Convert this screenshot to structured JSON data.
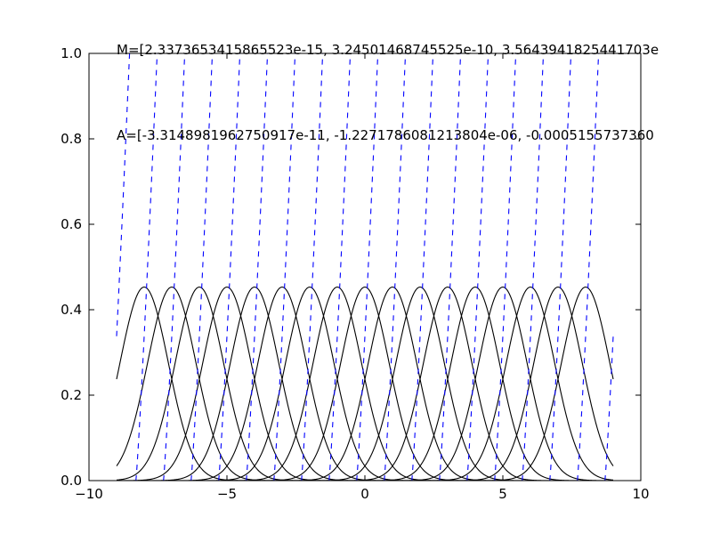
{
  "chart_data": {
    "type": "line",
    "title": "",
    "xlabel": "",
    "ylabel": "",
    "xlim": [
      -10,
      10
    ],
    "ylim": [
      0,
      1.0
    ],
    "grid": false,
    "legend": "none",
    "x_ticks": [
      -10,
      -5,
      0,
      5,
      10
    ],
    "x_tick_labels": [
      "−10",
      "−5",
      "0",
      "5",
      "10"
    ],
    "y_ticks": [
      0.0,
      0.2,
      0.4,
      0.6,
      0.8,
      1.0
    ],
    "y_tick_labels": [
      "0.0",
      "0.2",
      "0.4",
      "0.6",
      "0.8",
      "1.0"
    ],
    "x_range": [
      -9,
      9
    ],
    "gaussian_centers": [
      -8,
      -7,
      -6,
      -5,
      -4,
      -3,
      -2,
      -1,
      0,
      1,
      2,
      3,
      4,
      5,
      6,
      7,
      8
    ],
    "gaussian_sigma": 0.88,
    "gaussian_amplitude": 0.453,
    "dashed_curve_period": 1.0,
    "dashed_curve_offset": -9.3,
    "dashed_curve_range": [
      0.0,
      1.35
    ],
    "annotations": [
      {
        "text": "M=[2.3373653415865523e-15, 3.24501468745525e-10, 3.5643941825441703e",
        "x": -9,
        "y": 1.0
      },
      {
        "text": "A=[-3.314898196275​0917e-11, -1.2271786081213804e-06, -0.0005155737360",
        "x": -9,
        "y": 0.8
      }
    ],
    "colors": {
      "gaussian": "#000000",
      "dashed": "#0000ff",
      "axes": "#000000"
    }
  }
}
